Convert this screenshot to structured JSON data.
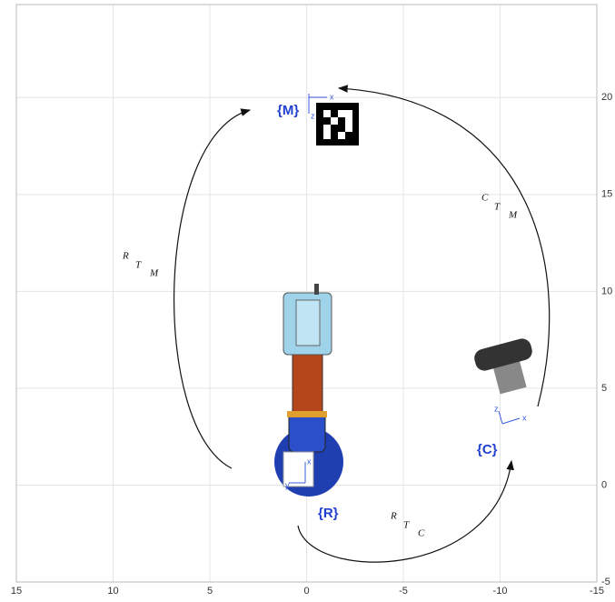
{
  "plot": {
    "xlim": [
      15,
      -15
    ],
    "ylim": [
      -5,
      24.8
    ],
    "xticks": [
      15,
      10,
      5,
      0,
      -5,
      -10,
      -15
    ],
    "yticks": [
      -5,
      0,
      5,
      10,
      15,
      20
    ],
    "grid": true
  },
  "frames": [
    {
      "label": "{M}",
      "axis_x": "x",
      "axis_z": "z"
    },
    {
      "label": "{R}",
      "axis_x": "x",
      "axis_z": "y"
    },
    {
      "label": "{C}",
      "axis_x": "x",
      "axis_z": "z"
    }
  ],
  "transforms": [
    {
      "sup": "R",
      "main": "T",
      "sub": "M"
    },
    {
      "sup": "C",
      "main": "T",
      "sub": "M"
    },
    {
      "sup": "R",
      "main": "T",
      "sub": "C"
    }
  ]
}
